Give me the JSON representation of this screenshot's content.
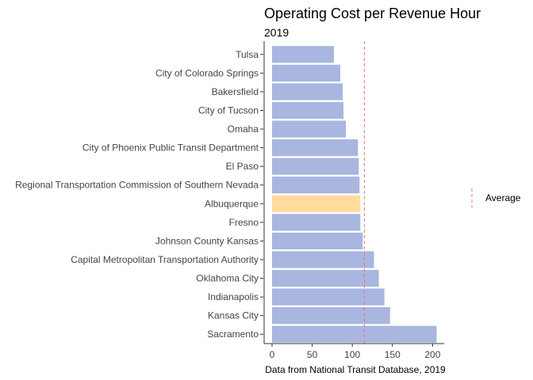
{
  "chart_data": {
    "type": "bar",
    "orientation": "horizontal",
    "title": "Operating Cost per Revenue Hour",
    "subtitle": "2019",
    "xlabel": "Data from National Transit Database, 2019",
    "ylabel": "",
    "xlim": [
      0,
      210
    ],
    "x_ticks": [
      "0",
      "50",
      "100",
      "150",
      "200"
    ],
    "categories": [
      "Tulsa",
      "City of Colorado Springs",
      "Bakersfield",
      "City of Tucson",
      "Omaha",
      "City of Phoenix Public Transit Department",
      "El Paso",
      "Regional Transportation Commission of Southern Nevada",
      "Albuquerque",
      "Fresno",
      "Johnson County Kansas",
      "Capital Metropolitan Transportation Authority",
      "Oklahoma City",
      "Indianapolis",
      "Kansas City",
      "Sacramento"
    ],
    "values": [
      77,
      85,
      88,
      89,
      92,
      107,
      108,
      109,
      110,
      110,
      113,
      127,
      133,
      140,
      147,
      205
    ],
    "highlight": "Albuquerque",
    "average": 115,
    "legend": {
      "label": "Average",
      "placement": "right"
    },
    "grid": false,
    "colors": {
      "bar": "#a8b6e0",
      "highlight": "#ffdb9c",
      "average_line": "#e07b7b",
      "axis": "#333333"
    }
  }
}
